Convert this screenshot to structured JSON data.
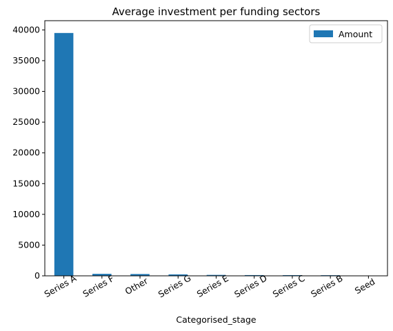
{
  "chart_data": {
    "type": "bar",
    "title": "Average investment per funding sectors",
    "xlabel": "Categorised_stage",
    "ylabel": "",
    "categories": [
      "Series A",
      "Series F",
      "Other",
      "Series G",
      "Series E",
      "Series D",
      "Series C",
      "Series B",
      "Seed"
    ],
    "series": [
      {
        "name": "Amount",
        "values": [
          39500,
          320,
          290,
          230,
          150,
          120,
          110,
          100,
          40
        ],
        "color": "#1f77b4"
      }
    ],
    "ylim": [
      0,
      41500
    ],
    "yticks": [
      0,
      5000,
      10000,
      15000,
      20000,
      25000,
      30000,
      35000,
      40000
    ],
    "grid": false,
    "legend": "top-right"
  }
}
